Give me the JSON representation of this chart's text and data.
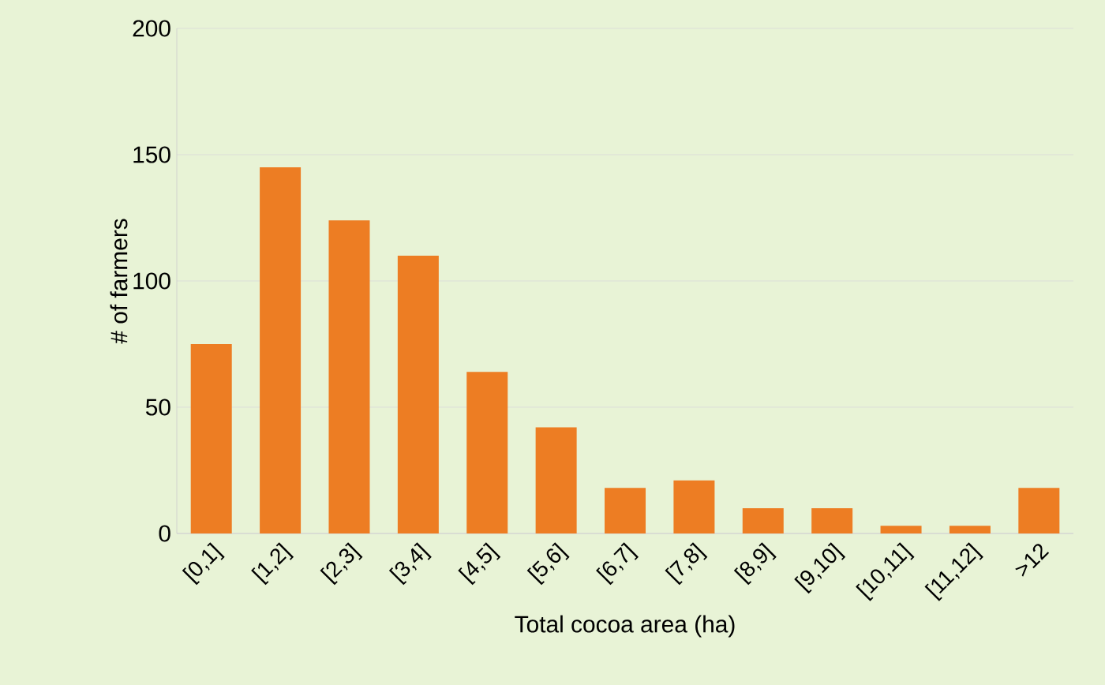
{
  "chart_data": {
    "type": "bar",
    "xlabel": "Total cocoa area (ha)",
    "ylabel": "# of farmers",
    "categories": [
      "[0,1]",
      "[1,2]",
      "[2,3]",
      "[3,4]",
      "[4,5]",
      "[5,6]",
      "[6,7]",
      "[7,8]",
      "[8,9]",
      "[9,10]",
      "[10,11]",
      "[11,12]",
      ">12"
    ],
    "values": [
      75,
      145,
      124,
      110,
      64,
      42,
      18,
      21,
      10,
      10,
      3,
      3,
      18
    ],
    "color": "#ed7d23",
    "ylim": [
      0,
      200
    ],
    "yticks": [
      0,
      50,
      100,
      150,
      200
    ],
    "grid": "y"
  }
}
